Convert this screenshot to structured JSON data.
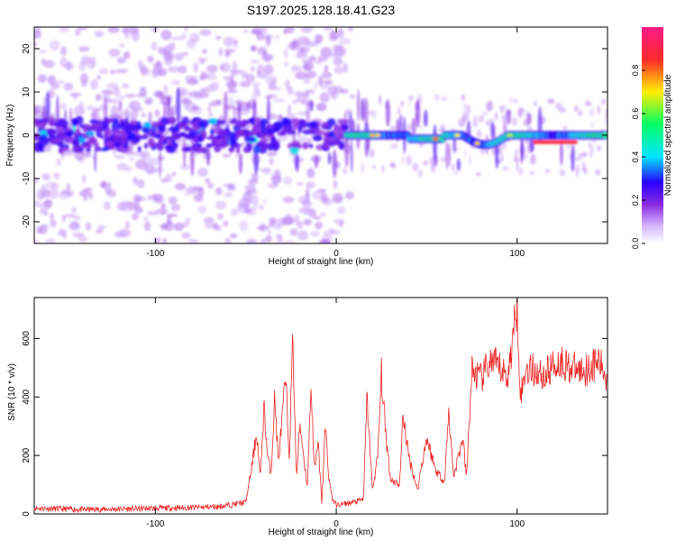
{
  "title": "S197.2025.128.18.41.G23",
  "colors": {
    "snr_line": "#ee2222",
    "colormap": [
      "#ffffff",
      "#d6b8ff",
      "#8a2be2",
      "#2a00ff",
      "#00e5ff",
      "#00ff66",
      "#ffee00",
      "#ff2a2a"
    ]
  },
  "chart_data": [
    {
      "type": "heatmap",
      "title": "S197.2025.128.18.41.G23",
      "xlabel": "Height of straight line (km)",
      "ylabel": "Frequency (Hz)",
      "xlim": [
        -167,
        150
      ],
      "ylim": [
        -25,
        25
      ],
      "xticks": [
        -100,
        0,
        100
      ],
      "xtick_labels": [
        "-100",
        "0",
        "100"
      ],
      "yticks": [
        -20,
        -10,
        0,
        10,
        20
      ],
      "ytick_labels": [
        "-20",
        "-10",
        "0",
        "10",
        "20"
      ],
      "colorbar": {
        "label": "Normalized spectral amplitude",
        "range": [
          0,
          1
        ],
        "ticks": [
          0.0,
          0.2,
          0.4,
          0.6,
          0.8
        ],
        "tick_labels": [
          "0.0",
          "0.2",
          "0.4",
          "0.6",
          "0.8"
        ]
      },
      "grid": false
    },
    {
      "type": "line",
      "xlabel": "Height of straight line (km)",
      "ylabel": "SNR (10 * v/v)",
      "xlim": [
        -167,
        150
      ],
      "ylim": [
        0,
        740
      ],
      "xticks": [
        -100,
        0,
        100
      ],
      "xtick_labels": [
        "-100",
        "0",
        "100"
      ],
      "yticks": [
        0,
        200,
        400,
        600
      ],
      "ytick_labels": [
        "0",
        "200",
        "400",
        "600"
      ],
      "grid": false,
      "series": [
        {
          "x": [
            -167,
            -140,
            -110,
            -80,
            -65,
            -50,
            -47,
            -44,
            -42,
            -40,
            -38,
            -36,
            -34,
            -32,
            -30,
            -28,
            -26,
            -24,
            -22,
            -20,
            -18,
            -16,
            -14,
            -12,
            -10,
            -8,
            -6,
            -4,
            -2,
            0,
            5,
            10,
            15,
            17,
            20,
            23,
            25,
            27,
            30,
            35,
            37,
            40,
            45,
            47,
            50,
            55,
            60,
            62,
            65,
            70,
            72,
            75,
            80,
            85,
            90,
            95,
            100,
            102,
            105,
            110,
            115,
            120,
            125,
            130,
            135,
            140,
            145,
            150
          ],
          "y": [
            20,
            15,
            18,
            22,
            25,
            40,
            150,
            280,
            120,
            370,
            200,
            140,
            400,
            180,
            320,
            460,
            200,
            600,
            120,
            310,
            200,
            90,
            440,
            150,
            240,
            40,
            300,
            120,
            50,
            30,
            35,
            40,
            50,
            400,
            80,
            200,
            480,
            300,
            120,
            100,
            340,
            200,
            80,
            160,
            260,
            150,
            110,
            350,
            130,
            260,
            120,
            490,
            460,
            520,
            500,
            470,
            720,
            400,
            500,
            490,
            470,
            510,
            520,
            500,
            490,
            500,
            520,
            460
          ]
        }
      ]
    }
  ]
}
